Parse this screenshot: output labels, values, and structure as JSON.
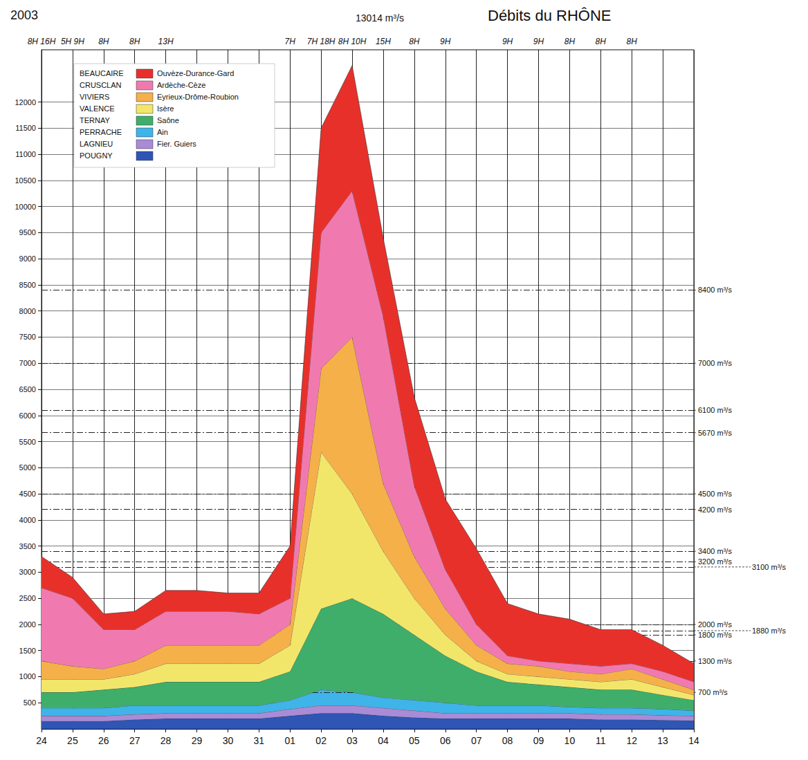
{
  "chart_data": {
    "type": "area",
    "title": "Débits du RHÔNE",
    "subtitle": "2003",
    "stacked": true,
    "grid": true,
    "legend": "top-left",
    "categories": [
      "24",
      "25",
      "26",
      "27",
      "28",
      "29",
      "30",
      "31",
      "01",
      "02",
      "03",
      "04",
      "05",
      "06",
      "07",
      "08",
      "09",
      "10",
      "11",
      "12",
      "13",
      "14"
    ],
    "ylim": [
      0,
      13000
    ],
    "yticks": [
      500,
      1000,
      1500,
      2000,
      2500,
      3000,
      3500,
      4000,
      4500,
      5000,
      5500,
      6000,
      6500,
      7000,
      7500,
      8000,
      8500,
      9000,
      9500,
      10000,
      10500,
      11000,
      11500,
      12000
    ],
    "series": [
      {
        "name": "POUGNY",
        "color": "#2f55b5",
        "values": [
          150,
          150,
          150,
          180,
          200,
          200,
          200,
          200,
          250,
          300,
          300,
          250,
          220,
          200,
          200,
          200,
          200,
          200,
          180,
          180,
          170,
          160
        ]
      },
      {
        "name": "LAGNIEU",
        "tributary": "Fier. Guiers",
        "color": "#a98bd6",
        "values": [
          100,
          100,
          100,
          100,
          100,
          100,
          100,
          100,
          130,
          150,
          150,
          150,
          130,
          100,
          100,
          100,
          100,
          100,
          100,
          100,
          90,
          90
        ]
      },
      {
        "name": "PERRACHE",
        "tributary": "Ain",
        "color": "#3fb4e8",
        "values": [
          150,
          150,
          150,
          170,
          150,
          150,
          150,
          150,
          170,
          300,
          250,
          200,
          200,
          200,
          150,
          150,
          150,
          120,
          120,
          120,
          120,
          100
        ]
      },
      {
        "name": "TERNAY",
        "tributary": "Saône",
        "color": "#3fae6a",
        "values": [
          300,
          300,
          350,
          350,
          450,
          450,
          450,
          450,
          550,
          1550,
          1800,
          1600,
          1250,
          900,
          650,
          450,
          400,
          380,
          350,
          350,
          270,
          200
        ]
      },
      {
        "name": "VALENCE",
        "tributary": "Isère",
        "color": "#f2e66a",
        "values": [
          250,
          250,
          200,
          250,
          350,
          350,
          350,
          350,
          500,
          3000,
          2000,
          1200,
          700,
          400,
          200,
          150,
          150,
          150,
          150,
          200,
          150,
          100
        ]
      },
      {
        "name": "VIVIERS",
        "tributary": "Eyrieux-Drôme-Roubion",
        "color": "#f5b04a",
        "values": [
          350,
          250,
          200,
          250,
          350,
          350,
          350,
          350,
          400,
          1600,
          3000,
          1300,
          800,
          500,
          300,
          200,
          200,
          150,
          150,
          200,
          150,
          100
        ]
      },
      {
        "name": "CRUSCLAN",
        "tributary": "Ardèche-Cèze",
        "color": "#f07ab0",
        "values": [
          1400,
          1300,
          750,
          600,
          650,
          650,
          650,
          600,
          500,
          2600,
          2800,
          3200,
          1350,
          750,
          400,
          150,
          100,
          150,
          150,
          100,
          150,
          150
        ]
      },
      {
        "name": "BEAUCAIRE",
        "tributary": "Ouvèze-Durance-Gard",
        "color": "#e8302a",
        "values": [
          600,
          400,
          300,
          350,
          400,
          400,
          350,
          400,
          1000,
          2000,
          2400,
          1500,
          1700,
          1350,
          1450,
          1000,
          900,
          850,
          700,
          650,
          500,
          350
        ]
      }
    ],
    "reference_lines": [
      {
        "value": 8400,
        "label": "8400 m³/s"
      },
      {
        "value": 7000,
        "label": "7000 m³/s"
      },
      {
        "value": 6100,
        "label": "6100 m³/s"
      },
      {
        "value": 5670,
        "label": "5670 m³/s"
      },
      {
        "value": 4500,
        "label": "4500 m³/s"
      },
      {
        "value": 4200,
        "label": "4200 m³/s"
      },
      {
        "value": 3400,
        "label": "3400 m³/s"
      },
      {
        "value": 3200,
        "label": "3200 m³/s"
      },
      {
        "value": 3100,
        "label": "3100 m³/s"
      },
      {
        "value": 2000,
        "label": "2000 m³/s"
      },
      {
        "value": 1880,
        "label": "1880 m³/s"
      },
      {
        "value": 1800,
        "label": "1800 m³/s"
      },
      {
        "value": 1300,
        "label": "1300 m³/s"
      },
      {
        "value": 700,
        "label": "700 m³/s"
      }
    ],
    "annotations": [
      {
        "x": "24",
        "text": "8H 16H"
      },
      {
        "x": "25",
        "text": "5H 9H"
      },
      {
        "x": "26",
        "text": "8H"
      },
      {
        "x": "27",
        "text": "8H"
      },
      {
        "x": "28",
        "text": "13H"
      },
      {
        "x": "01",
        "text": "7H"
      },
      {
        "x": "02",
        "text": "7H 18H"
      },
      {
        "x": "03",
        "text": "8H 10H"
      },
      {
        "x": "04",
        "text": "15H"
      },
      {
        "x": "05",
        "text": "8H"
      },
      {
        "x": "06",
        "text": "9H"
      },
      {
        "x": "08",
        "text": "9H"
      },
      {
        "x": "09",
        "text": "9H"
      },
      {
        "x": "10",
        "text": "8H"
      },
      {
        "x": "11",
        "text": "8H"
      },
      {
        "x": "12",
        "text": "8H"
      }
    ],
    "peak_label": {
      "x": "03",
      "text": "13014 m³/s"
    }
  }
}
